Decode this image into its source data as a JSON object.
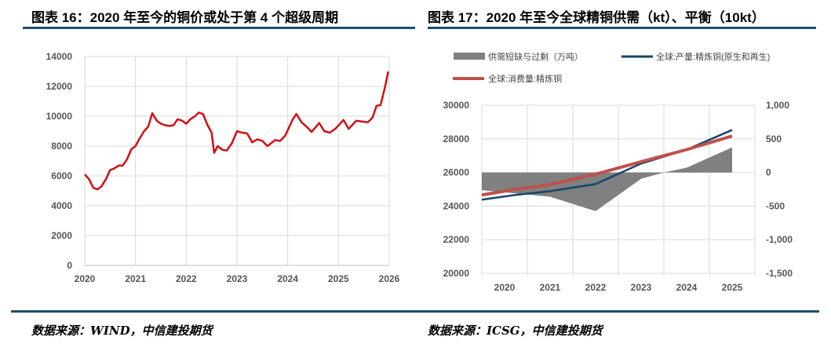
{
  "left": {
    "title": "图表 16：2020 年至今的铜价或处于第 4 个超级周期",
    "source": "数据来源：WIND，中信建投期货"
  },
  "right": {
    "title": "图表 17：2020 年至今全球精铜供需（kt）、平衡（10kt）",
    "source": "数据来源：ICSG，中信建投期货"
  },
  "chart_data": [
    {
      "type": "line",
      "title": "2020 年至今的铜价或处于第 4 个超级周期",
      "xlim": [
        2020,
        2026
      ],
      "ylim": [
        0,
        14000
      ],
      "x_ticks": [
        "2020",
        "2021",
        "2022",
        "2023",
        "2024",
        "2025",
        "2026"
      ],
      "y_ticks": [
        "0",
        "2000",
        "4000",
        "6000",
        "8000",
        "10000",
        "12000",
        "14000"
      ],
      "color": "#d20f14",
      "points": [
        [
          2020.0,
          6100
        ],
        [
          2020.08,
          5800
        ],
        [
          2020.17,
          5200
        ],
        [
          2020.25,
          5100
        ],
        [
          2020.33,
          5300
        ],
        [
          2020.42,
          5800
        ],
        [
          2020.5,
          6400
        ],
        [
          2020.58,
          6500
        ],
        [
          2020.67,
          6700
        ],
        [
          2020.75,
          6700
        ],
        [
          2020.83,
          7100
        ],
        [
          2020.92,
          7800
        ],
        [
          2021.0,
          8000
        ],
        [
          2021.08,
          8500
        ],
        [
          2021.17,
          9000
        ],
        [
          2021.25,
          9300
        ],
        [
          2021.33,
          10200
        ],
        [
          2021.42,
          9700
        ],
        [
          2021.5,
          9500
        ],
        [
          2021.58,
          9400
        ],
        [
          2021.67,
          9350
        ],
        [
          2021.75,
          9400
        ],
        [
          2021.83,
          9800
        ],
        [
          2021.92,
          9700
        ],
        [
          2022.0,
          9500
        ],
        [
          2022.08,
          9800
        ],
        [
          2022.17,
          10000
        ],
        [
          2022.25,
          10250
        ],
        [
          2022.33,
          10150
        ],
        [
          2022.42,
          9400
        ],
        [
          2022.5,
          8900
        ],
        [
          2022.55,
          7550
        ],
        [
          2022.62,
          8000
        ],
        [
          2022.71,
          7750
        ],
        [
          2022.8,
          7700
        ],
        [
          2022.9,
          8200
        ],
        [
          2023.0,
          9000
        ],
        [
          2023.1,
          8900
        ],
        [
          2023.2,
          8850
        ],
        [
          2023.3,
          8250
        ],
        [
          2023.4,
          8450
        ],
        [
          2023.5,
          8350
        ],
        [
          2023.6,
          8000
        ],
        [
          2023.75,
          8400
        ],
        [
          2023.85,
          8350
        ],
        [
          2023.95,
          8700
        ],
        [
          2024.1,
          9800
        ],
        [
          2024.17,
          10150
        ],
        [
          2024.27,
          9600
        ],
        [
          2024.37,
          9300
        ],
        [
          2024.47,
          8950
        ],
        [
          2024.62,
          9550
        ],
        [
          2024.72,
          9000
        ],
        [
          2024.83,
          8900
        ],
        [
          2024.95,
          9200
        ],
        [
          2025.1,
          9750
        ],
        [
          2025.2,
          9150
        ],
        [
          2025.35,
          9700
        ],
        [
          2025.45,
          9650
        ],
        [
          2025.58,
          9600
        ],
        [
          2025.67,
          9900
        ],
        [
          2025.75,
          10700
        ],
        [
          2025.83,
          10750
        ],
        [
          2025.92,
          12000
        ],
        [
          2025.98,
          13000
        ]
      ]
    },
    {
      "type": "line+area",
      "title": "2020 年至今全球精铜供需（kt）、平衡（10kt）",
      "categories": [
        "2020",
        "2021",
        "2022",
        "2023",
        "2024",
        "2025"
      ],
      "ylim": [
        20000,
        30000
      ],
      "y2lim": [
        -1500,
        1000
      ],
      "y_ticks": [
        "20000",
        "22000",
        "24000",
        "26000",
        "28000",
        "30000"
      ],
      "y2_ticks": [
        "-1,500",
        "-1,000",
        "-500",
        "0",
        "500",
        "1,000"
      ],
      "legend": [
        "供需短缺与过剩（万吨）",
        "全球:产量:精炼铜(原生和再生)",
        "全球:消费量:精炼铜"
      ],
      "series": [
        {
          "name": "供需短缺与过剩（万吨）",
          "axis": "right",
          "type": "area",
          "color": "#808080",
          "points": [
            [
              2019.5,
              -263
            ],
            [
              2021,
              -361
            ],
            [
              2022,
              -576
            ],
            [
              2023,
              -94
            ],
            [
              2023.5,
              0
            ],
            [
              2024,
              71
            ],
            [
              2025,
              373
            ]
          ]
        },
        {
          "name": "全球:产量:精炼铜(原生和再生)",
          "axis": "left",
          "type": "line",
          "color": "#15466b",
          "points": [
            [
              2019.5,
              24380
            ],
            [
              2020.2,
              24650
            ],
            [
              2021,
              24890
            ],
            [
              2022,
              25310
            ],
            [
              2023,
              26530
            ],
            [
              2024,
              27360
            ],
            [
              2025,
              28530
            ]
          ]
        },
        {
          "name": "全球:消费量:精炼铜",
          "axis": "left",
          "type": "line",
          "color": "#c0504d",
          "points": [
            [
              2019.5,
              24660
            ],
            [
              2020.2,
              24980
            ],
            [
              2021,
              25280
            ],
            [
              2022,
              25900
            ],
            [
              2023,
              26640
            ],
            [
              2024,
              27360
            ],
            [
              2025,
              28170
            ]
          ]
        }
      ]
    }
  ]
}
